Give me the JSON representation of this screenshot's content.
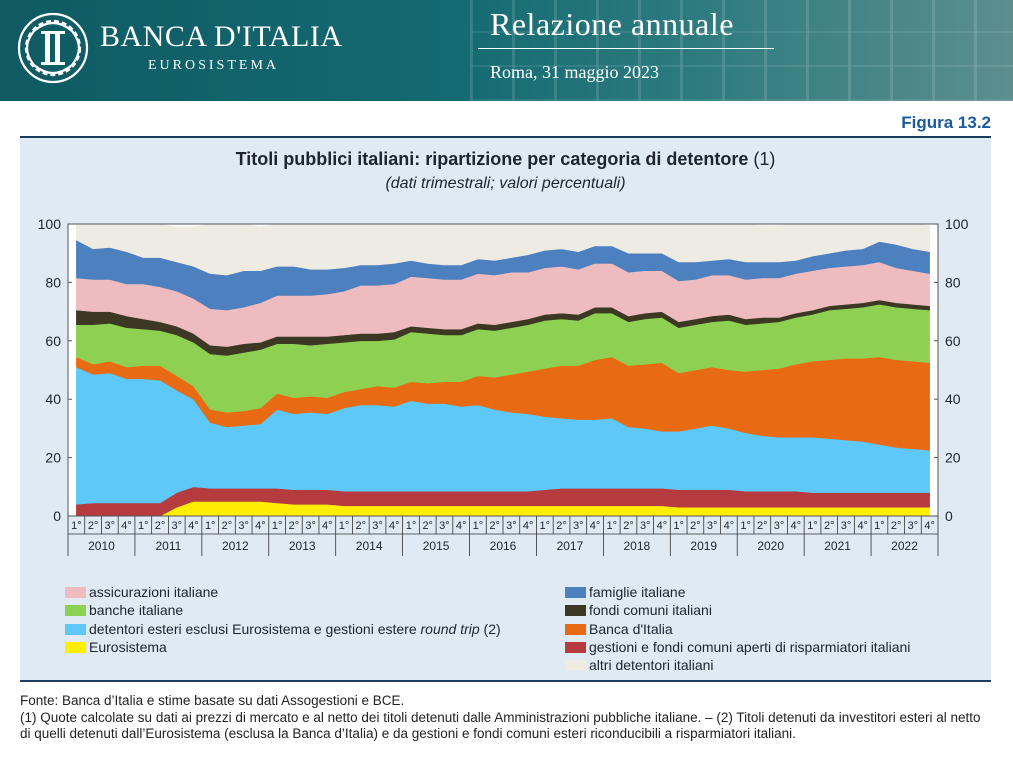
{
  "header": {
    "bank_name": "BANCA D'ITALIA",
    "bank_subtitle": "EUROSISTEMA",
    "report_title": "Relazione annuale",
    "report_date": "Roma, 31 maggio 2023"
  },
  "figure_label": "Figura 13.2",
  "footer": {
    "source": "Fonte: Banca d’Italia e stime basate su dati Assogestioni e BCE.",
    "note1": "(1) Quote calcolate su dati ai prezzi di mercato e al netto dei titoli detenuti dalle Amministrazioni pubbliche italiane. – (2) Titoli detenuti da investitori esteri al netto di quelli detenuti dall’Eurosistema (esclusa la Banca d’Italia) e da gestioni e fondi comuni esteri riconducibili a risparmiatori italiani."
  },
  "chart_data": {
    "type": "area",
    "stacked": true,
    "title": "Titoli pubblici italiani: ripartizione per categoria di detentore",
    "title_note": "(1)",
    "subtitle": "(dati trimestrali; valori percentuali)",
    "ylim": [
      0,
      100
    ],
    "yticks": [
      0,
      20,
      40,
      60,
      80,
      100
    ],
    "axes": "left and right",
    "quarter_labels": [
      "1°",
      "2°",
      "3°",
      "4°"
    ],
    "years": [
      "2010",
      "2011",
      "2012",
      "2013",
      "2014",
      "2015",
      "2016",
      "2017",
      "2018",
      "2019",
      "2020",
      "2021",
      "2022"
    ],
    "stack_order": [
      "eurosistema",
      "gestioni",
      "esteri",
      "bdi",
      "banche",
      "fondi",
      "assic",
      "famiglie",
      "altri"
    ],
    "series": [
      {
        "key": "eurosistema",
        "name": "Eurosistema",
        "color": "#ffee00",
        "values": [
          0,
          0,
          0,
          0,
          0,
          0,
          3,
          5,
          5,
          5,
          5,
          5,
          4.5,
          4,
          4,
          4,
          3.5,
          3.5,
          3.5,
          3.5,
          3.5,
          3.5,
          3.5,
          3.5,
          3.5,
          3.5,
          3.5,
          3.5,
          3.5,
          3.5,
          3.5,
          3.5,
          3.5,
          3.5,
          3.5,
          3.5,
          3,
          3,
          3,
          3,
          3,
          3,
          3,
          3,
          3,
          3,
          3,
          3,
          3,
          3,
          3,
          3
        ]
      },
      {
        "key": "gestioni",
        "name": "gestioni e fondi comuni aperti di risparmiatori italiani",
        "color": "#b63b3f",
        "values": [
          4,
          4.5,
          4.5,
          4.5,
          4.5,
          4.5,
          5,
          5,
          4.5,
          4.5,
          4.5,
          4.5,
          5,
          5,
          5,
          5,
          5,
          5,
          5,
          5,
          5,
          5,
          5,
          5,
          5,
          5,
          5,
          5,
          5.5,
          6,
          6,
          6,
          6,
          6,
          6,
          6,
          6,
          6,
          6,
          6,
          5.5,
          5.5,
          5.5,
          5.5,
          5,
          5,
          5,
          5,
          5,
          5,
          5,
          5
        ]
      },
      {
        "key": "esteri",
        "name": "detentori esteri esclusi Eurosistema e gestioni estere round trip (2)",
        "name_parts": [
          "detentori esteri esclusi Eurosistema e gestioni estere ",
          "round trip",
          " (2)"
        ],
        "color": "#5ec8f8",
        "values": [
          47,
          44,
          44.5,
          42.5,
          42.5,
          42,
          35,
          30,
          22.5,
          21,
          21.5,
          22,
          27,
          26,
          26.5,
          26,
          28.5,
          29.5,
          29.5,
          29,
          31,
          30,
          30,
          29,
          29.5,
          28,
          27,
          26.5,
          25,
          24,
          23.5,
          23.5,
          24,
          21,
          20.5,
          19.5,
          20,
          21,
          22,
          21,
          20,
          19,
          18.5,
          18.5,
          19,
          18.5,
          18,
          17.5,
          16.5,
          15.5,
          15,
          14.5
        ]
      },
      {
        "key": "bdi",
        "name": "Banca d'Italia",
        "color": "#e86b14",
        "values": [
          3.5,
          3.5,
          4,
          4,
          4.5,
          5,
          5,
          4.5,
          4.5,
          5,
          5,
          5.5,
          5.5,
          5.5,
          5.5,
          5.5,
          5.5,
          5.5,
          6.5,
          6.5,
          6.5,
          7,
          7.5,
          8.5,
          10,
          11,
          13,
          14.5,
          16.5,
          18,
          18.5,
          20.5,
          21,
          21,
          22,
          23.5,
          20,
          20,
          20,
          20,
          21,
          22.5,
          23.5,
          25,
          26,
          27,
          28,
          28.5,
          30,
          30,
          30,
          30
        ]
      },
      {
        "key": "banche",
        "name": "banche italiane",
        "color": "#8ed152",
        "values": [
          11,
          13.5,
          13,
          13.5,
          12.5,
          12,
          14,
          15,
          19,
          19.5,
          20,
          20,
          17,
          18.5,
          17.5,
          18.5,
          17,
          16.5,
          15.5,
          16.5,
          17,
          17,
          16,
          16,
          16,
          16,
          16,
          16,
          16.5,
          16,
          15.5,
          16,
          15,
          15,
          15.5,
          15.5,
          15.5,
          15.5,
          15.5,
          17,
          16,
          16,
          16,
          16,
          16,
          17,
          17,
          17.5,
          18,
          18,
          18,
          18
        ]
      },
      {
        "key": "fondi",
        "name": "fondi comuni italiani",
        "color": "#3c3824",
        "values": [
          5,
          4.5,
          4,
          4,
          3.5,
          3,
          3,
          3,
          3,
          3,
          3,
          2.5,
          2.5,
          2.5,
          3,
          2.5,
          2.5,
          2.5,
          2.5,
          2.5,
          2,
          2,
          2,
          2,
          2,
          2,
          2,
          2,
          2,
          2,
          2,
          2,
          2,
          2,
          2,
          2,
          2,
          2,
          2,
          2,
          2,
          2,
          1.5,
          1.5,
          1.5,
          1.5,
          1.5,
          1.5,
          1.5,
          1.5,
          1.5,
          1.5
        ]
      },
      {
        "key": "assic",
        "name": "assicurazioni italiane",
        "color": "#eebcbf",
        "values": [
          11,
          11,
          11,
          11,
          12,
          12,
          12,
          12,
          12.5,
          12.5,
          12.5,
          13.5,
          14,
          14,
          14,
          14.5,
          15,
          16.5,
          16.5,
          16.5,
          17,
          17,
          17,
          17,
          17,
          17,
          17,
          16,
          16,
          16,
          15.5,
          15,
          15,
          15,
          14.5,
          14,
          14,
          13.5,
          14,
          13.5,
          13.5,
          13.5,
          13.5,
          13.5,
          13.5,
          13,
          13,
          13,
          13,
          12,
          11.5,
          11
        ]
      },
      {
        "key": "famiglie",
        "name": "famiglie italiane",
        "color": "#4d80bf",
        "values": [
          13,
          10.5,
          11,
          11,
          9,
          10,
          10,
          11,
          12,
          12,
          12.5,
          11,
          10,
          10,
          9,
          8.5,
          8,
          7,
          7,
          7,
          5.5,
          5,
          5,
          5,
          5,
          5,
          5,
          6,
          6,
          6,
          6,
          6,
          6,
          6.5,
          6,
          6,
          6.5,
          6,
          5,
          5.5,
          6,
          5.5,
          5.5,
          4.5,
          5,
          5,
          5.5,
          5.5,
          7,
          8,
          7.5,
          7.5
        ]
      },
      {
        "key": "altri",
        "name": "altri detentori italiani",
        "color": "#eeebe2",
        "values": [
          5.5,
          8.5,
          9,
          9.5,
          11.5,
          11.5,
          12,
          13.5,
          17,
          17.5,
          16,
          15,
          14.5,
          14.5,
          15.5,
          15.5,
          15,
          14,
          14,
          14,
          13,
          13.5,
          14,
          14,
          16,
          15.5,
          15.5,
          14.5,
          12.5,
          12.5,
          14,
          13,
          14,
          13,
          13,
          12.5,
          13,
          13,
          12.5,
          12,
          13,
          12.5,
          12.5,
          12.5,
          13,
          12,
          11.5,
          11.5,
          6,
          8,
          8.5,
          9
        ]
      }
    ],
    "legend_layout": [
      [
        "assic",
        "banche",
        "esteri",
        "eurosistema"
      ],
      [
        "famiglie",
        "fondi",
        "bdi",
        "gestioni",
        "altri"
      ]
    ]
  }
}
